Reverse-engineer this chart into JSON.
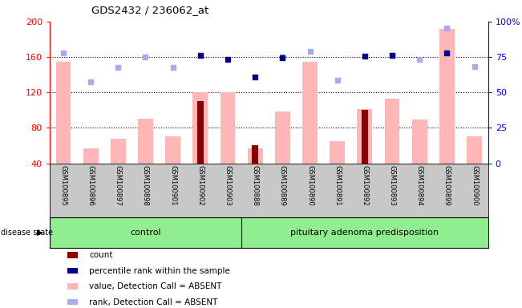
{
  "title": "GDS2432 / 236062_at",
  "samples": [
    "GSM100895",
    "GSM100896",
    "GSM100897",
    "GSM100898",
    "GSM100901",
    "GSM100902",
    "GSM100903",
    "GSM100888",
    "GSM100889",
    "GSM100890",
    "GSM100891",
    "GSM100892",
    "GSM100893",
    "GSM100894",
    "GSM100899",
    "GSM100900"
  ],
  "control_count": 7,
  "pituitary_count": 9,
  "value_bars": [
    155,
    57,
    68,
    90,
    70,
    120,
    120,
    57,
    98,
    155,
    65,
    101,
    113,
    89,
    192,
    70
  ],
  "count_bars": [
    null,
    null,
    null,
    null,
    null,
    110,
    null,
    60,
    null,
    null,
    null,
    100,
    null,
    null,
    null,
    null
  ],
  "percentile_rank": [
    null,
    null,
    null,
    null,
    null,
    162,
    157,
    137,
    159,
    null,
    null,
    161,
    162,
    null,
    165,
    null
  ],
  "rank_absent": [
    165,
    132,
    148,
    160,
    148,
    null,
    null,
    null,
    160,
    166,
    134,
    null,
    162,
    157,
    193,
    149
  ],
  "ylim_left": [
    40,
    200
  ],
  "yticks_left": [
    40,
    80,
    120,
    160,
    200
  ],
  "yticks_right": [
    0,
    25,
    50,
    75,
    100
  ],
  "ytick_right_labels": [
    "0",
    "25",
    "50",
    "75",
    "100%"
  ],
  "hlines": [
    80,
    120,
    160
  ],
  "bar_color_value": "#FFB6B6",
  "bar_color_count": "#8B0000",
  "dot_color_percentile": "#00008B",
  "dot_color_rank": "#AAAAEE",
  "group_color": "#90EE90",
  "tick_area_color": "#C8C8C8",
  "legend_items": [
    {
      "color": "#8B0000",
      "label": "count"
    },
    {
      "color": "#00008B",
      "label": "percentile rank within the sample"
    },
    {
      "color": "#FFB6B6",
      "label": "value, Detection Call = ABSENT"
    },
    {
      "color": "#AAAAEE",
      "label": "rank, Detection Call = ABSENT"
    }
  ]
}
